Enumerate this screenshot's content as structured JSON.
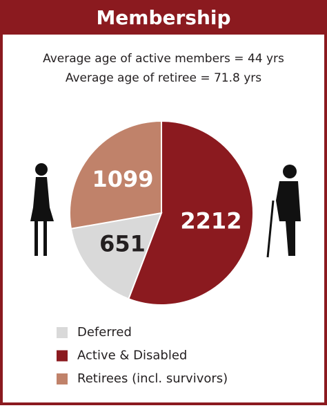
{
  "chart_data": {
    "type": "pie",
    "title": "Membership",
    "subtitle": [
      "Average age of active members = 44 yrs",
      "Average age of retiree = 71.8 yrs"
    ],
    "categories": [
      "Deferred",
      "Active & Disabled",
      "Retirees (incl. survivors)"
    ],
    "values": [
      651,
      2212,
      1099
    ],
    "colors": [
      "#d9d9d9",
      "#8b1a1f",
      "#c0826a"
    ],
    "label_colors": [
      "#231f20",
      "#ffffff",
      "#ffffff"
    ]
  }
}
